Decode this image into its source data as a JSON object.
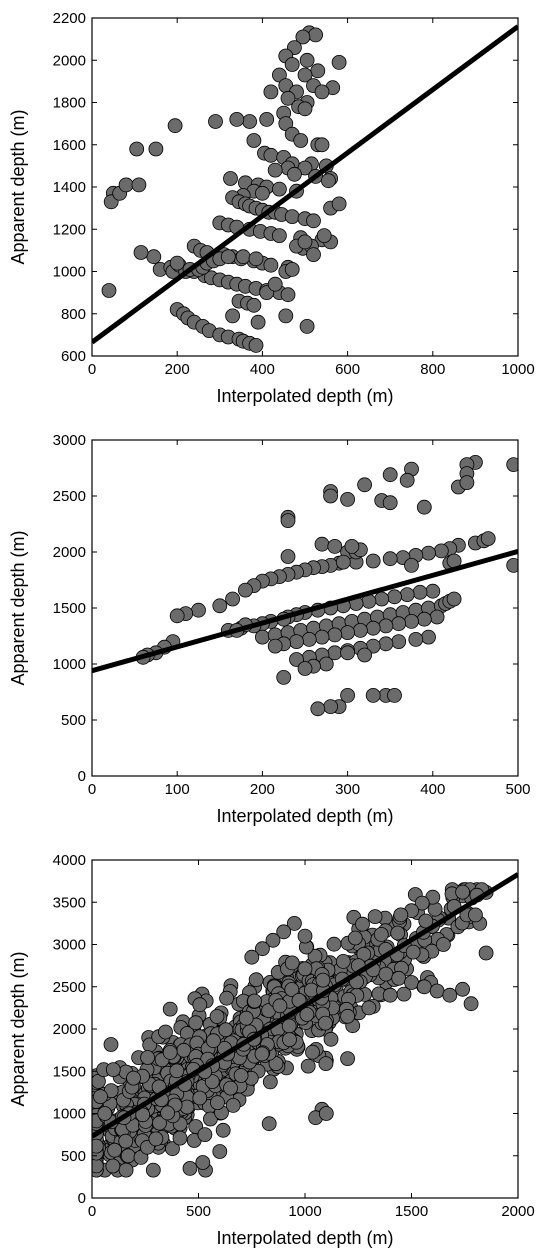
{
  "colors": {
    "point_fill": "#6b6b6b",
    "point_stroke": "#000000",
    "line": "#000000",
    "axes": "#000000"
  },
  "chart_data": [
    {
      "type": "scatter",
      "xlabel": "Interpolated depth (m)",
      "ylabel": "Apparent depth (m)",
      "xlim": [
        0,
        1000
      ],
      "ylim": [
        600,
        2200
      ],
      "xticks": [
        0,
        200,
        400,
        600,
        800,
        1000
      ],
      "yticks": [
        600,
        800,
        1000,
        1200,
        1400,
        1600,
        1800,
        2000,
        2200
      ],
      "grid": false,
      "fit_line": {
        "x": [
          0,
          1000
        ],
        "y": [
          665,
          2160
        ]
      },
      "series": [
        {
          "x": [
            510,
            525,
            495,
            475,
            455,
            505,
            470,
            580,
            530,
            500,
            440,
            520,
            455,
            565,
            480,
            540,
            420,
            460,
            505,
            485,
            500,
            450,
            410,
            455,
            370,
            290,
            340,
            195,
            105,
            150,
            380,
            470,
            490,
            530,
            540,
            405,
            420,
            450,
            470,
            515,
            550,
            460,
            500,
            430,
            475,
            525,
            560,
            555,
            325,
            360,
            390,
            410,
            440,
            480,
            380,
            400,
            355,
            330,
            345,
            360,
            370,
            385,
            400,
            415,
            430,
            445,
            470,
            500,
            520,
            300,
            320,
            340,
            370,
            395,
            420,
            440,
            490,
            540,
            560,
            240,
            255,
            270,
            310,
            330,
            350,
            380,
            400,
            420,
            460,
            50,
            45,
            65,
            80,
            110,
            145,
            160,
            185,
            190,
            205,
            220,
            240,
            265,
            280,
            300,
            320,
            340,
            360,
            385,
            410,
            440,
            460,
            200,
            215,
            225,
            240,
            260,
            275,
            300,
            320,
            345,
            355,
            370,
            385,
            505,
            40,
            115,
            200,
            230,
            250,
            260,
            270,
            285,
            300,
            320,
            355,
            385,
            345,
            365,
            380,
            410,
            430,
            455,
            470,
            495,
            515,
            545,
            330,
            390,
            455,
            480,
            500,
            520,
            560,
            580
          ],
          "y": [
            2130,
            2120,
            2110,
            2060,
            2020,
            2000,
            1980,
            1990,
            1950,
            1930,
            1930,
            1880,
            1880,
            1870,
            1850,
            1850,
            1850,
            1820,
            1800,
            1780,
            1770,
            1750,
            1720,
            1700,
            1710,
            1710,
            1720,
            1690,
            1580,
            1580,
            1620,
            1650,
            1620,
            1600,
            1600,
            1560,
            1550,
            1540,
            1510,
            1510,
            1500,
            1490,
            1490,
            1480,
            1460,
            1450,
            1440,
            1430,
            1440,
            1420,
            1410,
            1400,
            1390,
            1380,
            1380,
            1370,
            1360,
            1350,
            1330,
            1320,
            1310,
            1300,
            1290,
            1280,
            1280,
            1270,
            1260,
            1250,
            1240,
            1230,
            1220,
            1210,
            1200,
            1190,
            1180,
            1170,
            1160,
            1150,
            1140,
            1120,
            1100,
            1090,
            1080,
            1070,
            1060,
            1050,
            1040,
            1030,
            1020,
            1370,
            1330,
            1370,
            1410,
            1410,
            1070,
            1010,
            1020,
            1000,
            1030,
            1000,
            1000,
            980,
            970,
            960,
            950,
            940,
            930,
            920,
            910,
            900,
            890,
            820,
            800,
            780,
            760,
            740,
            720,
            700,
            690,
            680,
            670,
            660,
            650,
            740,
            910,
            1090,
            1040,
            1010,
            1010,
            1020,
            1040,
            1050,
            1060,
            1070,
            1070,
            1060,
            860,
            850,
            840,
            900,
            940,
            1000,
            1010,
            1110,
            1120,
            1170,
            790,
            760,
            790,
            1120,
            1140,
            1080,
            1300,
            1320
          ]
        }
      ]
    },
    {
      "type": "scatter",
      "xlabel": "Interpolated depth (m)",
      "ylabel": "Apparent depth (m)",
      "xlim": [
        0,
        500
      ],
      "ylim": [
        0,
        3000
      ],
      "xticks": [
        0,
        100,
        200,
        300,
        400,
        500
      ],
      "yticks": [
        0,
        500,
        1000,
        1500,
        2000,
        2500,
        3000
      ],
      "grid": false,
      "fit_line": {
        "x": [
          0,
          500
        ],
        "y": [
          940,
          2005
        ]
      },
      "series": [
        {
          "x": [
            450,
            440,
            495,
            440,
            375,
            350,
            370,
            280,
            280,
            300,
            230,
            230,
            320,
            340,
            350,
            390,
            430,
            440,
            450,
            460,
            465,
            495,
            430,
            420,
            410,
            395,
            380,
            365,
            350,
            330,
            310,
            290,
            280,
            270,
            260,
            250,
            240,
            230,
            220,
            210,
            200,
            190,
            180,
            165,
            150,
            125,
            110,
            100,
            95,
            85,
            75,
            65,
            60,
            400,
            385,
            370,
            355,
            340,
            325,
            310,
            295,
            280,
            265,
            250,
            240,
            230,
            225,
            210,
            200,
            190,
            175,
            160,
            200,
            215,
            230,
            245,
            260,
            275,
            290,
            305,
            320,
            335,
            350,
            365,
            380,
            395,
            410,
            415,
            420,
            425,
            405,
            390,
            375,
            360,
            345,
            330,
            315,
            300,
            285,
            270,
            255,
            240,
            225,
            215,
            395,
            380,
            360,
            345,
            330,
            315,
            300,
            285,
            270,
            255,
            240,
            300,
            375,
            420,
            425,
            310,
            315,
            305,
            295,
            270,
            285,
            230,
            180,
            170,
            225,
            300,
            320,
            275,
            260,
            250,
            345,
            330,
            355,
            300,
            290,
            280,
            265
          ],
          "y": [
            2800,
            2780,
            2780,
            2700,
            2740,
            2690,
            2640,
            2540,
            2500,
            2470,
            2310,
            2280,
            2600,
            2460,
            2440,
            2400,
            2580,
            2620,
            2080,
            2100,
            2120,
            1880,
            2060,
            2030,
            2010,
            1990,
            1970,
            1950,
            1940,
            1920,
            1910,
            1900,
            1880,
            1870,
            1860,
            1840,
            1820,
            1800,
            1780,
            1760,
            1740,
            1700,
            1660,
            1580,
            1520,
            1480,
            1450,
            1430,
            1200,
            1150,
            1100,
            1080,
            1060,
            1650,
            1640,
            1620,
            1600,
            1580,
            1560,
            1540,
            1520,
            1500,
            1480,
            1460,
            1440,
            1420,
            1400,
            1380,
            1360,
            1340,
            1320,
            1300,
            1240,
            1260,
            1280,
            1300,
            1320,
            1340,
            1360,
            1380,
            1400,
            1420,
            1440,
            1460,
            1480,
            1500,
            1520,
            1540,
            1560,
            1580,
            1420,
            1400,
            1380,
            1360,
            1340,
            1320,
            1300,
            1280,
            1260,
            1240,
            1220,
            1200,
            1180,
            1160,
            1240,
            1220,
            1200,
            1180,
            1160,
            1140,
            1120,
            1100,
            1080,
            1060,
            1040,
            2000,
            1880,
            1900,
            1920,
            2000,
            2020,
            2050,
            1910,
            2070,
            2050,
            1960,
            1350,
            1300,
            880,
            1100,
            1080,
            1000,
            980,
            960,
            720,
            720,
            720,
            720,
            620,
            620,
            600
          ],
          "_note": ""
        }
      ]
    },
    {
      "type": "scatter",
      "xlabel": "Interpolated depth (m)",
      "ylabel": "Apparent depth (m)",
      "xlim": [
        0,
        2000
      ],
      "ylim": [
        0,
        4000
      ],
      "xticks": [
        0,
        500,
        1000,
        1500,
        2000
      ],
      "yticks": [
        0,
        500,
        1000,
        1500,
        2000,
        2500,
        3000,
        3500,
        4000
      ],
      "grid": false,
      "fit_line": {
        "x": [
          0,
          2000
        ],
        "y": [
          730,
          3830
        ]
      },
      "series": [
        {
          "x": [],
          "y": [],
          "generator": {
            "count": 900,
            "slope": 1.55,
            "intercept": 730,
            "x_range": [
              20,
              1850
            ],
            "spread": 420
          }
        }
      ]
    }
  ],
  "extras": {
    "panel3_outliers_x": [
      1690,
      1740,
      1600,
      1550,
      1500,
      1450,
      1700,
      1760,
      1820,
      1850,
      1650,
      1590,
      1400,
      1300,
      1200,
      40,
      30,
      55,
      100,
      60,
      150,
      170,
      230,
      260,
      300,
      460,
      520,
      600,
      480,
      530,
      650,
      700,
      1080,
      1200,
      1050,
      1100,
      1000,
      950,
      900,
      850,
      800,
      750,
      1180,
      1250,
      1320,
      1380,
      1440,
      1500,
      1560,
      1620,
      1680,
      1740,
      1780,
      1800
    ],
    "panel3_outliers_y": [
      3600,
      3620,
      3560,
      3490,
      3400,
      3350,
      3450,
      3350,
      3250,
      2900,
      3000,
      2550,
      2400,
      2250,
      2150,
      1200,
      1380,
      1520,
      1520,
      1000,
      950,
      500,
      480,
      600,
      700,
      350,
      420,
      550,
      680,
      750,
      1300,
      1450,
      1050,
      1650,
      950,
      1000,
      3100,
      3250,
      3150,
      3050,
      2950,
      2850,
      2800,
      2750,
      2700,
      2650,
      2600,
      2550,
      2500,
      2450,
      2400,
      2470,
      2300,
      3350
    ]
  }
}
